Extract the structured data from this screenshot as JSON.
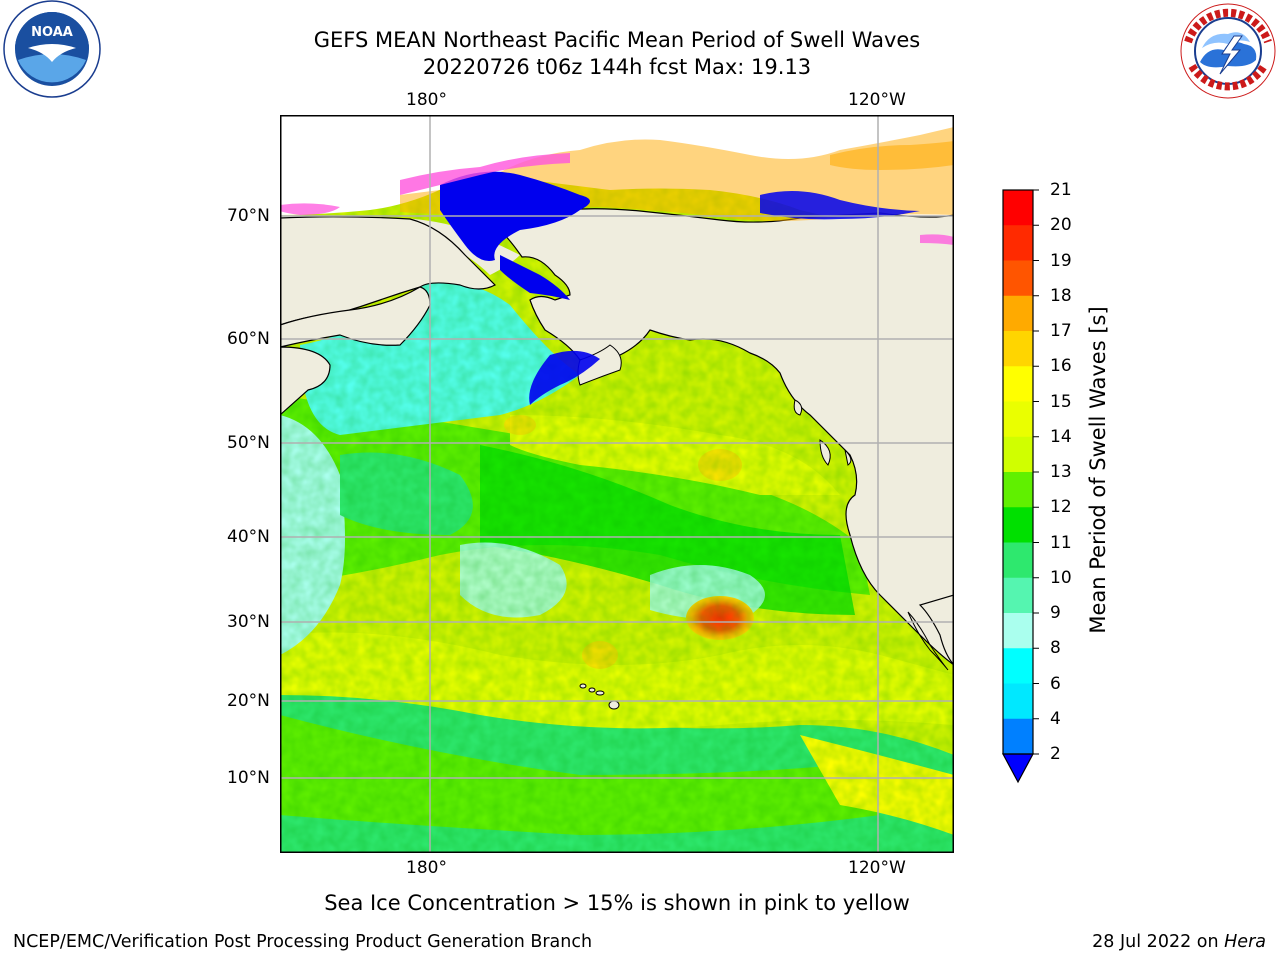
{
  "title": {
    "line1": "GEFS MEAN Northeast Pacific Mean Period of Swell Waves",
    "line2": "20220726 t06z 144h fcst   Max: 19.13"
  },
  "map": {
    "lon_ticks_top": [
      "180°",
      "120°W"
    ],
    "lon_ticks_bottom": [
      "180°",
      "120°W"
    ],
    "lat_ticks": [
      "70°N",
      "60°N",
      "50°N",
      "40°N",
      "30°N",
      "20°N",
      "10°N"
    ],
    "colors": {
      "land": "#efedde",
      "grid": "#b0b0b0",
      "coast": "#000000"
    }
  },
  "colorbar": {
    "label": "Mean Period of Swell Waves [s]",
    "ticks": [
      "21",
      "20",
      "19",
      "18",
      "17",
      "16",
      "15",
      "14",
      "13",
      "12",
      "11",
      "10",
      "9",
      "8",
      "6",
      "4",
      "2"
    ],
    "colors_top_to_bottom": [
      "#ff0000",
      "#ff2a00",
      "#ff5500",
      "#ff8000",
      "#ffaa00",
      "#ffd500",
      "#ffff00",
      "#eaff00",
      "#d0ff00",
      "#a8f000",
      "#60f000",
      "#00e000",
      "#2ee86e",
      "#55f5b0",
      "#aaffee",
      "#55ffee",
      "#00ffff",
      "#00e8ff",
      "#0080ff"
    ],
    "extend_color": "#0000ff"
  },
  "caption": "Sea Ice Concentration > 15% is shown in pink to yellow",
  "footer": {
    "left": "NCEP/EMC/Verification Post Processing Product Generation Branch",
    "date": "28 Jul 2022 on ",
    "machine": "Hera"
  },
  "logos": {
    "noaa": "noaa-logo",
    "nws": "national-weather-service-logo",
    "noaa_text": "NOAA"
  }
}
